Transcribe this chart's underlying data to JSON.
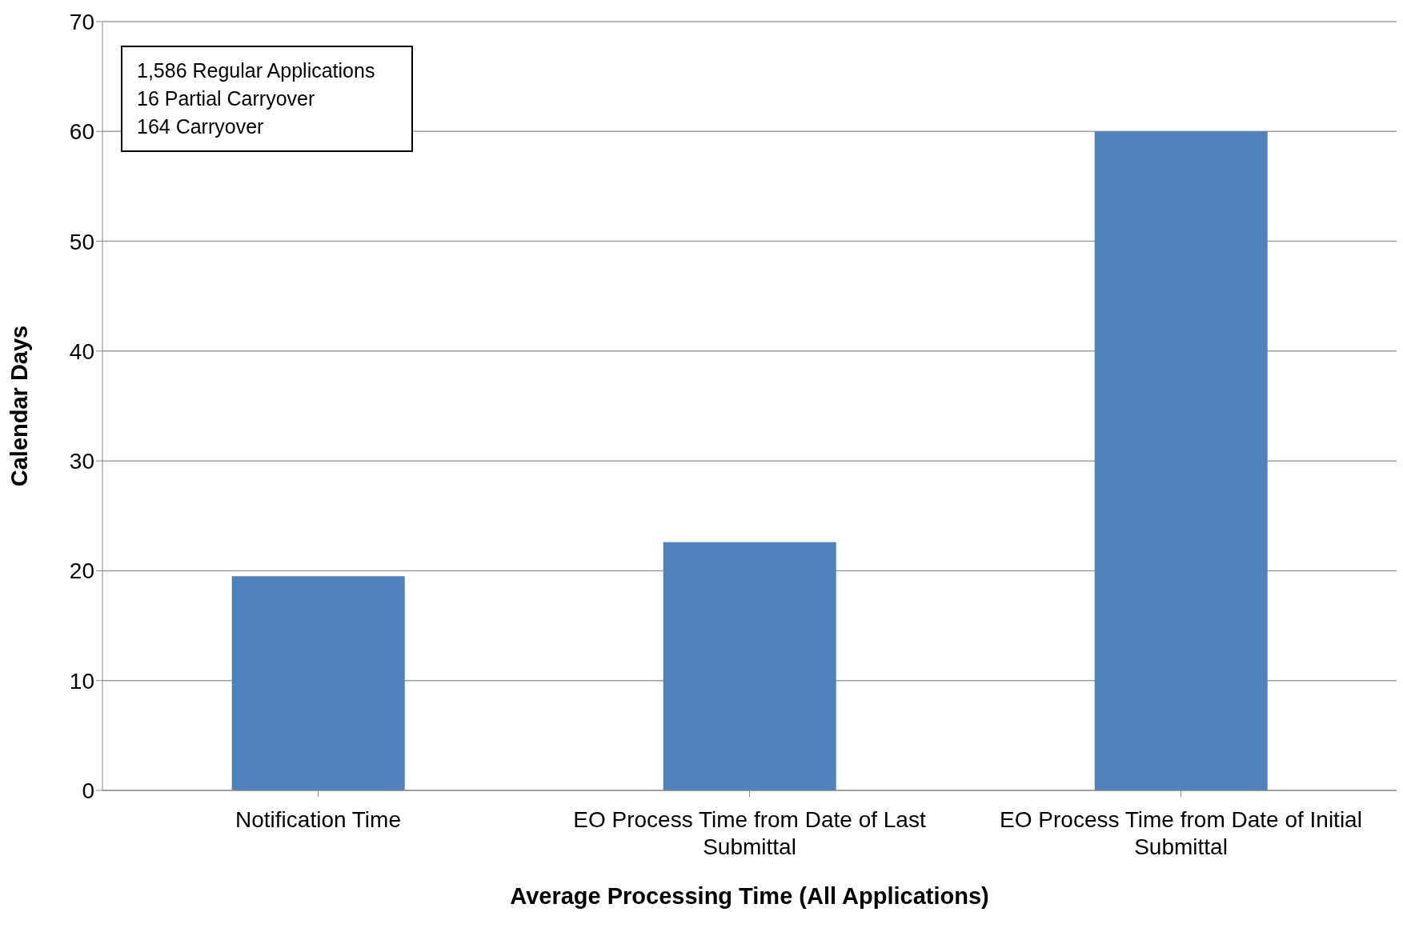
{
  "chart_data": {
    "type": "bar",
    "xlabel": "Average Processing Time (All Applications)",
    "ylabel": "Calendar Days",
    "categories": [
      "Notification Time",
      "EO Process Time from Date of Last Submittal",
      "EO Process Time from Date of Initial Submittal"
    ],
    "values": [
      19.5,
      22.6,
      60.0
    ],
    "color": "#4f81bd",
    "ylim": [
      0,
      70
    ],
    "yticks": [
      0,
      10,
      20,
      30,
      40,
      50,
      60,
      70
    ],
    "grid": "y",
    "annotations": [
      "1,586 Regular Applications",
      "16 Partial Carryover",
      "164 Carryover"
    ]
  }
}
